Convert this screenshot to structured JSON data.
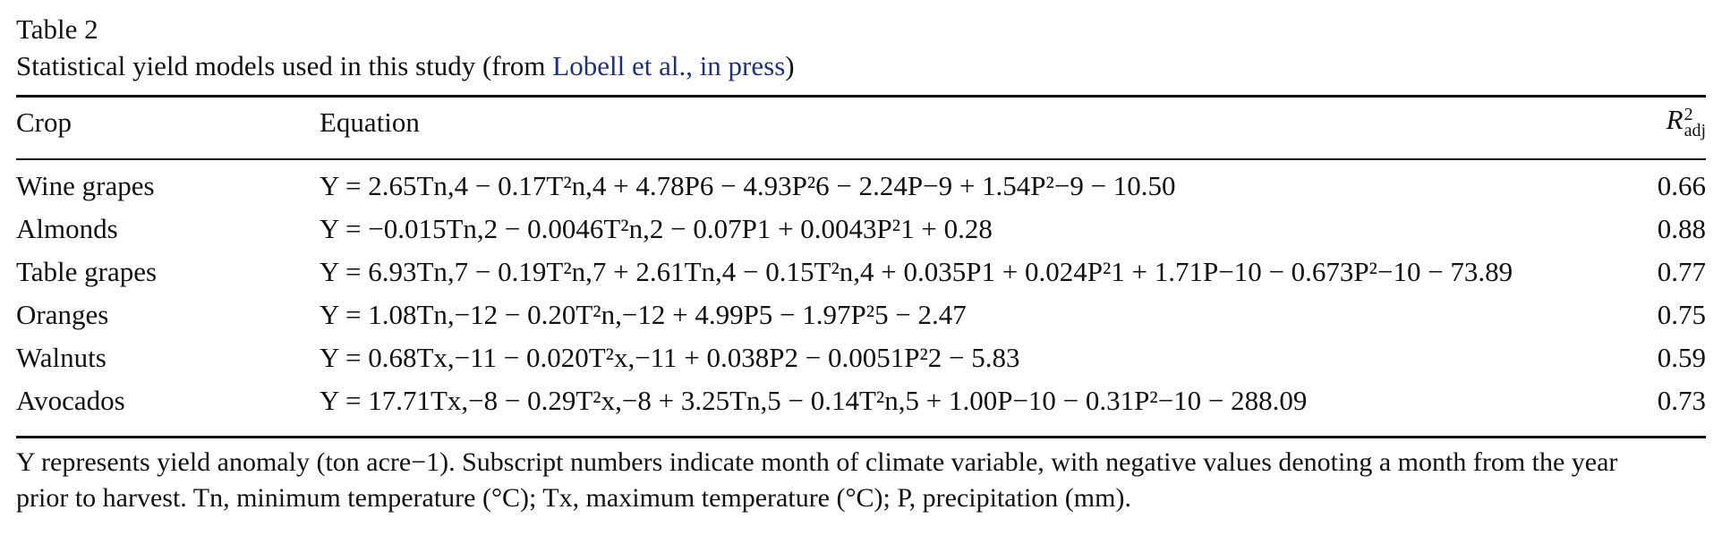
{
  "caption": {
    "label": "Table 2",
    "title_prefix": "Statistical yield models used in this study (from ",
    "title_ref": "Lobell et al., in press",
    "title_suffix": ")"
  },
  "table": {
    "headers": {
      "crop": "Crop",
      "equation": "Equation",
      "r2_symbol": "R",
      "r2_sup": "2",
      "r2_sub": "adj"
    },
    "rows": [
      {
        "crop": "Wine grapes",
        "equation": "Y = 2.65Tn,4 − 0.17T²n,4 + 4.78P6 − 4.93P²6 − 2.24P−9 + 1.54P²−9 − 10.50",
        "r2": "0.66"
      },
      {
        "crop": "Almonds",
        "equation": "Y = −0.015Tn,2 − 0.0046T²n,2 − 0.07P1 + 0.0043P²1 + 0.28",
        "r2": "0.88"
      },
      {
        "crop": "Table grapes",
        "equation": "Y = 6.93Tn,7 − 0.19T²n,7 + 2.61Tn,4 − 0.15T²n,4 + 0.035P1 + 0.024P²1 + 1.71P−10 − 0.673P²−10 − 73.89",
        "r2": "0.77"
      },
      {
        "crop": "Oranges",
        "equation": "Y = 1.08Tn,−12 − 0.20T²n,−12 + 4.99P5 − 1.97P²5 − 2.47",
        "r2": "0.75"
      },
      {
        "crop": "Walnuts",
        "equation": "Y = 0.68Tx,−11 − 0.020T²x,−11 + 0.038P2 − 0.0051P²2 − 5.83",
        "r2": "0.59"
      },
      {
        "crop": "Avocados",
        "equation": "Y = 17.71Tx,−8 − 0.29T²x,−8 + 3.25Tn,5 − 0.14T²n,5 + 1.00P−10 − 0.31P²−10 − 288.09",
        "r2": "0.73"
      }
    ]
  },
  "footnote": {
    "line1": "Y represents yield anomaly (ton acre−1). Subscript numbers indicate month of climate variable, with negative values denoting a month from the year",
    "line2": "prior to harvest. Tn, minimum temperature (°C); Tx, maximum temperature (°C); P, precipitation (mm)."
  }
}
